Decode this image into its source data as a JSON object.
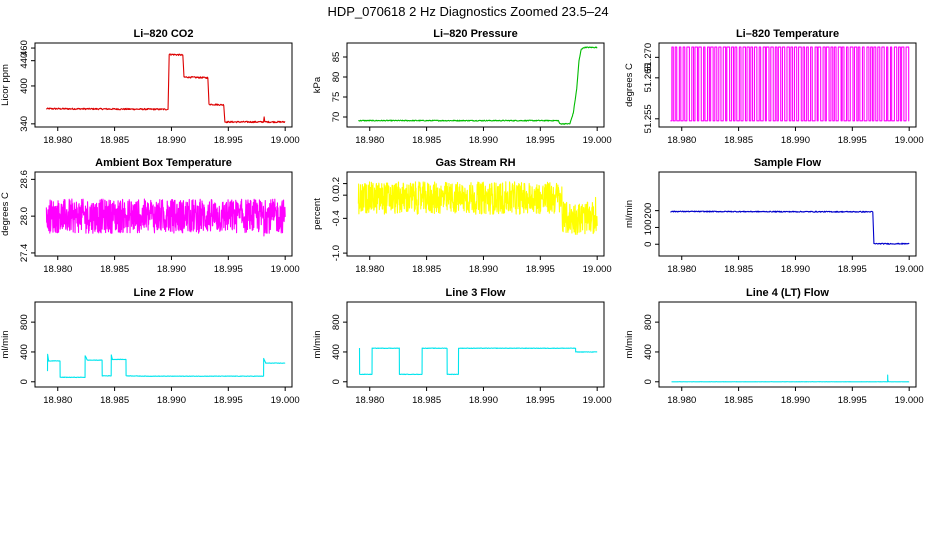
{
  "figure": {
    "title": "HDP_070618  2 Hz Diagnostics Zoomed 23.5–24"
  },
  "chart_data": [
    {
      "type": "line",
      "title": "Li–820 CO2",
      "ylabel": "Licor ppm",
      "color": "#dd0000",
      "xlim": [
        18.978,
        19.0006
      ],
      "x_ticks": [
        "18.980",
        "18.985",
        "18.990",
        "18.995",
        "19.000"
      ],
      "ylim": [
        335,
        468
      ],
      "y_ticks": [
        340,
        400,
        440,
        460
      ],
      "noise": 1.2,
      "series": [
        {
          "x": [
            18.979,
            18.9897,
            18.9898,
            18.991,
            18.9911,
            18.9932,
            18.9933,
            18.9946,
            18.9947,
            18.9981,
            18.99815,
            18.9982,
            19.0
          ],
          "y": [
            364,
            363,
            450,
            449,
            414,
            413,
            371,
            370,
            343,
            343,
            352,
            343,
            343
          ]
        }
      ]
    },
    {
      "type": "line",
      "title": "Li–820 Pressure",
      "ylabel": "kPa",
      "color": "#00bb00",
      "xlim": [
        18.978,
        19.0006
      ],
      "x_ticks": [
        "18.980",
        "18.985",
        "18.990",
        "18.995",
        "19.000"
      ],
      "ylim": [
        67.5,
        88.5
      ],
      "y_ticks": [
        70,
        75,
        80,
        85
      ],
      "noise": 0.12,
      "series": [
        {
          "x": [
            18.979,
            18.9966,
            18.9967,
            18.9976,
            18.9979,
            18.9982,
            18.9984,
            18.9986,
            18.9989,
            19.0
          ],
          "y": [
            69.1,
            69.1,
            68.3,
            68.3,
            71,
            77,
            84,
            87,
            87.4,
            87.4
          ]
        }
      ]
    },
    {
      "type": "line",
      "title": "Li–820 Temperature",
      "ylabel": "degrees C",
      "color": "#ff00ff",
      "xlim": [
        18.978,
        19.0006
      ],
      "x_ticks": [
        "18.980",
        "18.985",
        "18.990",
        "18.995",
        "19.000"
      ],
      "ylim": [
        51.253,
        51.2735
      ],
      "y_ticks": [
        51.255,
        51.265,
        51.27
      ],
      "y_tick_labels": [
        "51.255",
        "51.265",
        "51.270"
      ],
      "style": "binary-toggle",
      "levels": [
        51.2545,
        51.2725
      ],
      "toggle_count": 120
    },
    {
      "type": "line",
      "title": "Ambient Box Temperature",
      "ylabel": "degrees C",
      "color": "#ff00ff",
      "xlim": [
        18.978,
        19.0006
      ],
      "x_ticks": [
        "18.980",
        "18.985",
        "18.990",
        "18.995",
        "19.000"
      ],
      "ylim": [
        27.35,
        28.72
      ],
      "y_ticks": [
        27.4,
        28.0,
        28.6
      ],
      "y_tick_labels": [
        "27.4",
        "28.0",
        "28.6"
      ],
      "style": "noise",
      "mean": 28.0,
      "amplitude": 0.28,
      "points": 900
    },
    {
      "type": "line",
      "title": "Gas Stream RH",
      "ylabel": "percent",
      "color": "#ffff00",
      "xlim": [
        18.978,
        19.0006
      ],
      "x_ticks": [
        "18.980",
        "18.985",
        "18.990",
        "18.995",
        "19.000"
      ],
      "ylim": [
        -1.05,
        0.4
      ],
      "y_ticks": [
        -1.0,
        -0.4,
        0.0,
        0.2
      ],
      "y_tick_labels": [
        "-1.0",
        "-0.4",
        "0.0",
        "0.2"
      ],
      "style": "noise",
      "mean": -0.05,
      "amplitude": 0.28,
      "points": 900,
      "shift_after": 18.9969,
      "shift_mean": -0.4
    },
    {
      "type": "line",
      "title": "Sample Flow",
      "ylabel": "ml/min",
      "color": "#0000cc",
      "xlim": [
        18.978,
        19.0006
      ],
      "x_ticks": [
        "18.980",
        "18.985",
        "18.990",
        "18.995",
        "19.000"
      ],
      "ylim": [
        -70,
        430
      ],
      "y_ticks": [
        0,
        100,
        200
      ],
      "noise": 3,
      "series": [
        {
          "x": [
            18.979,
            18.9968,
            18.9969,
            19.0
          ],
          "y": [
            195,
            193,
            3,
            3
          ]
        }
      ]
    },
    {
      "type": "line",
      "title": "Line 2 Flow",
      "ylabel": "ml/min",
      "color": "#00e5ee",
      "xlim": [
        18.978,
        19.0006
      ],
      "x_ticks": [
        "18.980",
        "18.985",
        "18.990",
        "18.995",
        "19.000"
      ],
      "ylim": [
        -70,
        1070
      ],
      "y_ticks": [
        0,
        400,
        800
      ],
      "noise": 3,
      "series": [
        {
          "x": [
            18.9791,
            18.97911,
            18.9792,
            18.9802,
            18.98021,
            18.9824,
            18.98241,
            18.9826,
            18.9839,
            18.98391,
            18.9847,
            18.98471,
            18.9848,
            18.986,
            18.98601,
            18.9861,
            18.9878,
            18.98781,
            18.9981,
            18.99811,
            18.9983,
            19.0
          ],
          "y": [
            140,
            370,
            280,
            280,
            60,
            60,
            350,
            290,
            290,
            80,
            80,
            360,
            300,
            300,
            80,
            80,
            75,
            75,
            75,
            310,
            250,
            250
          ]
        }
      ]
    },
    {
      "type": "line",
      "title": "Line 3 Flow",
      "ylabel": "ml/min",
      "color": "#00e5ee",
      "xlim": [
        18.978,
        19.0006
      ],
      "x_ticks": [
        "18.980",
        "18.985",
        "18.990",
        "18.995",
        "19.000"
      ],
      "ylim": [
        -70,
        1070
      ],
      "y_ticks": [
        0,
        400,
        800
      ],
      "noise": 3,
      "series": [
        {
          "x": [
            18.9791,
            18.97911,
            18.9802,
            18.98021,
            18.9826,
            18.98261,
            18.9846,
            18.98461,
            18.9868,
            18.98681,
            18.9878,
            18.98781,
            18.9981,
            18.99811,
            19.0
          ],
          "y": [
            450,
            100,
            100,
            450,
            450,
            100,
            100,
            450,
            450,
            100,
            100,
            450,
            450,
            400,
            400
          ]
        }
      ]
    },
    {
      "type": "line",
      "title": "Line 4 (LT) Flow",
      "ylabel": "ml/min",
      "color": "#00e5ee",
      "xlim": [
        18.978,
        19.0006
      ],
      "x_ticks": [
        "18.980",
        "18.985",
        "18.990",
        "18.995",
        "19.000"
      ],
      "ylim": [
        -70,
        1070
      ],
      "y_ticks": [
        0,
        400,
        800
      ],
      "noise": 1,
      "series": [
        {
          "x": [
            18.9791,
            18.9981,
            18.99811,
            18.99812,
            18.9982,
            19.0
          ],
          "y": [
            0,
            0,
            90,
            20,
            0,
            0
          ]
        }
      ]
    }
  ]
}
